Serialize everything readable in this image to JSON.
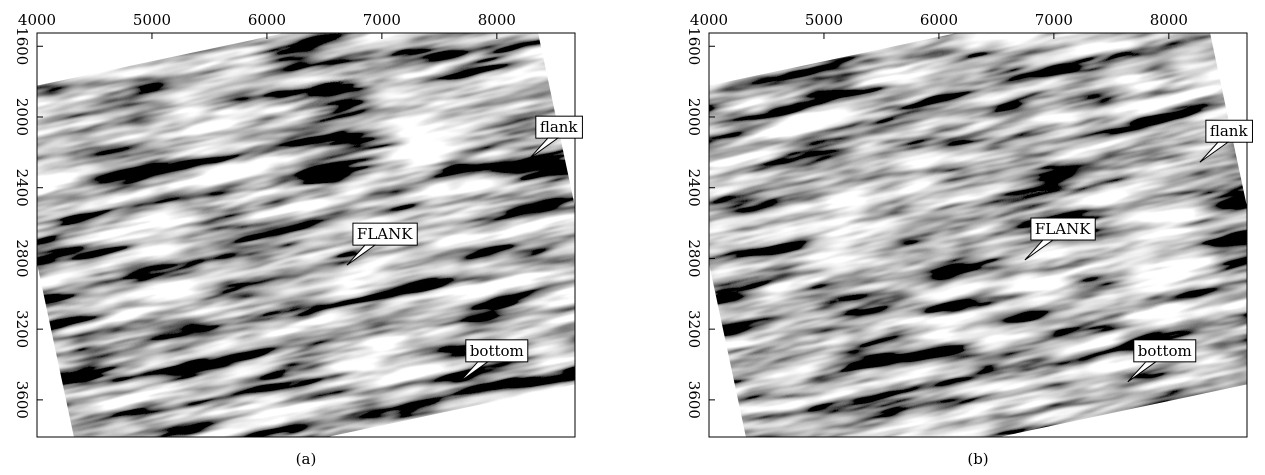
{
  "chart_data": [
    {
      "type": "image",
      "caption": "(a)",
      "xlim": [
        4000,
        8680
      ],
      "ylim": [
        1525,
        3810
      ],
      "xticks": [
        4000,
        5000,
        6000,
        7000,
        8000
      ],
      "yticks": [
        1600,
        2000,
        2400,
        2800,
        3200,
        3600
      ],
      "annotations": [
        {
          "text": "flank",
          "x": 8287,
          "y": 2233
        },
        {
          "text": "FLANK",
          "x": 6696,
          "y": 2838
        },
        {
          "text": "bottom",
          "x": 7678,
          "y": 3498
        }
      ]
    },
    {
      "type": "image",
      "caption": "(b)",
      "xlim": [
        4000,
        8680
      ],
      "ylim": [
        1525,
        3810
      ],
      "xticks": [
        4000,
        5000,
        6000,
        7000,
        8000
      ],
      "yticks": [
        1600,
        2000,
        2400,
        2800,
        3200,
        3600
      ],
      "annotations": [
        {
          "text": "flank",
          "x": 8270,
          "y": 2256
        },
        {
          "text": "FLANK",
          "x": 6748,
          "y": 2809
        },
        {
          "text": "bottom",
          "x": 7643,
          "y": 3498
        }
      ]
    }
  ]
}
